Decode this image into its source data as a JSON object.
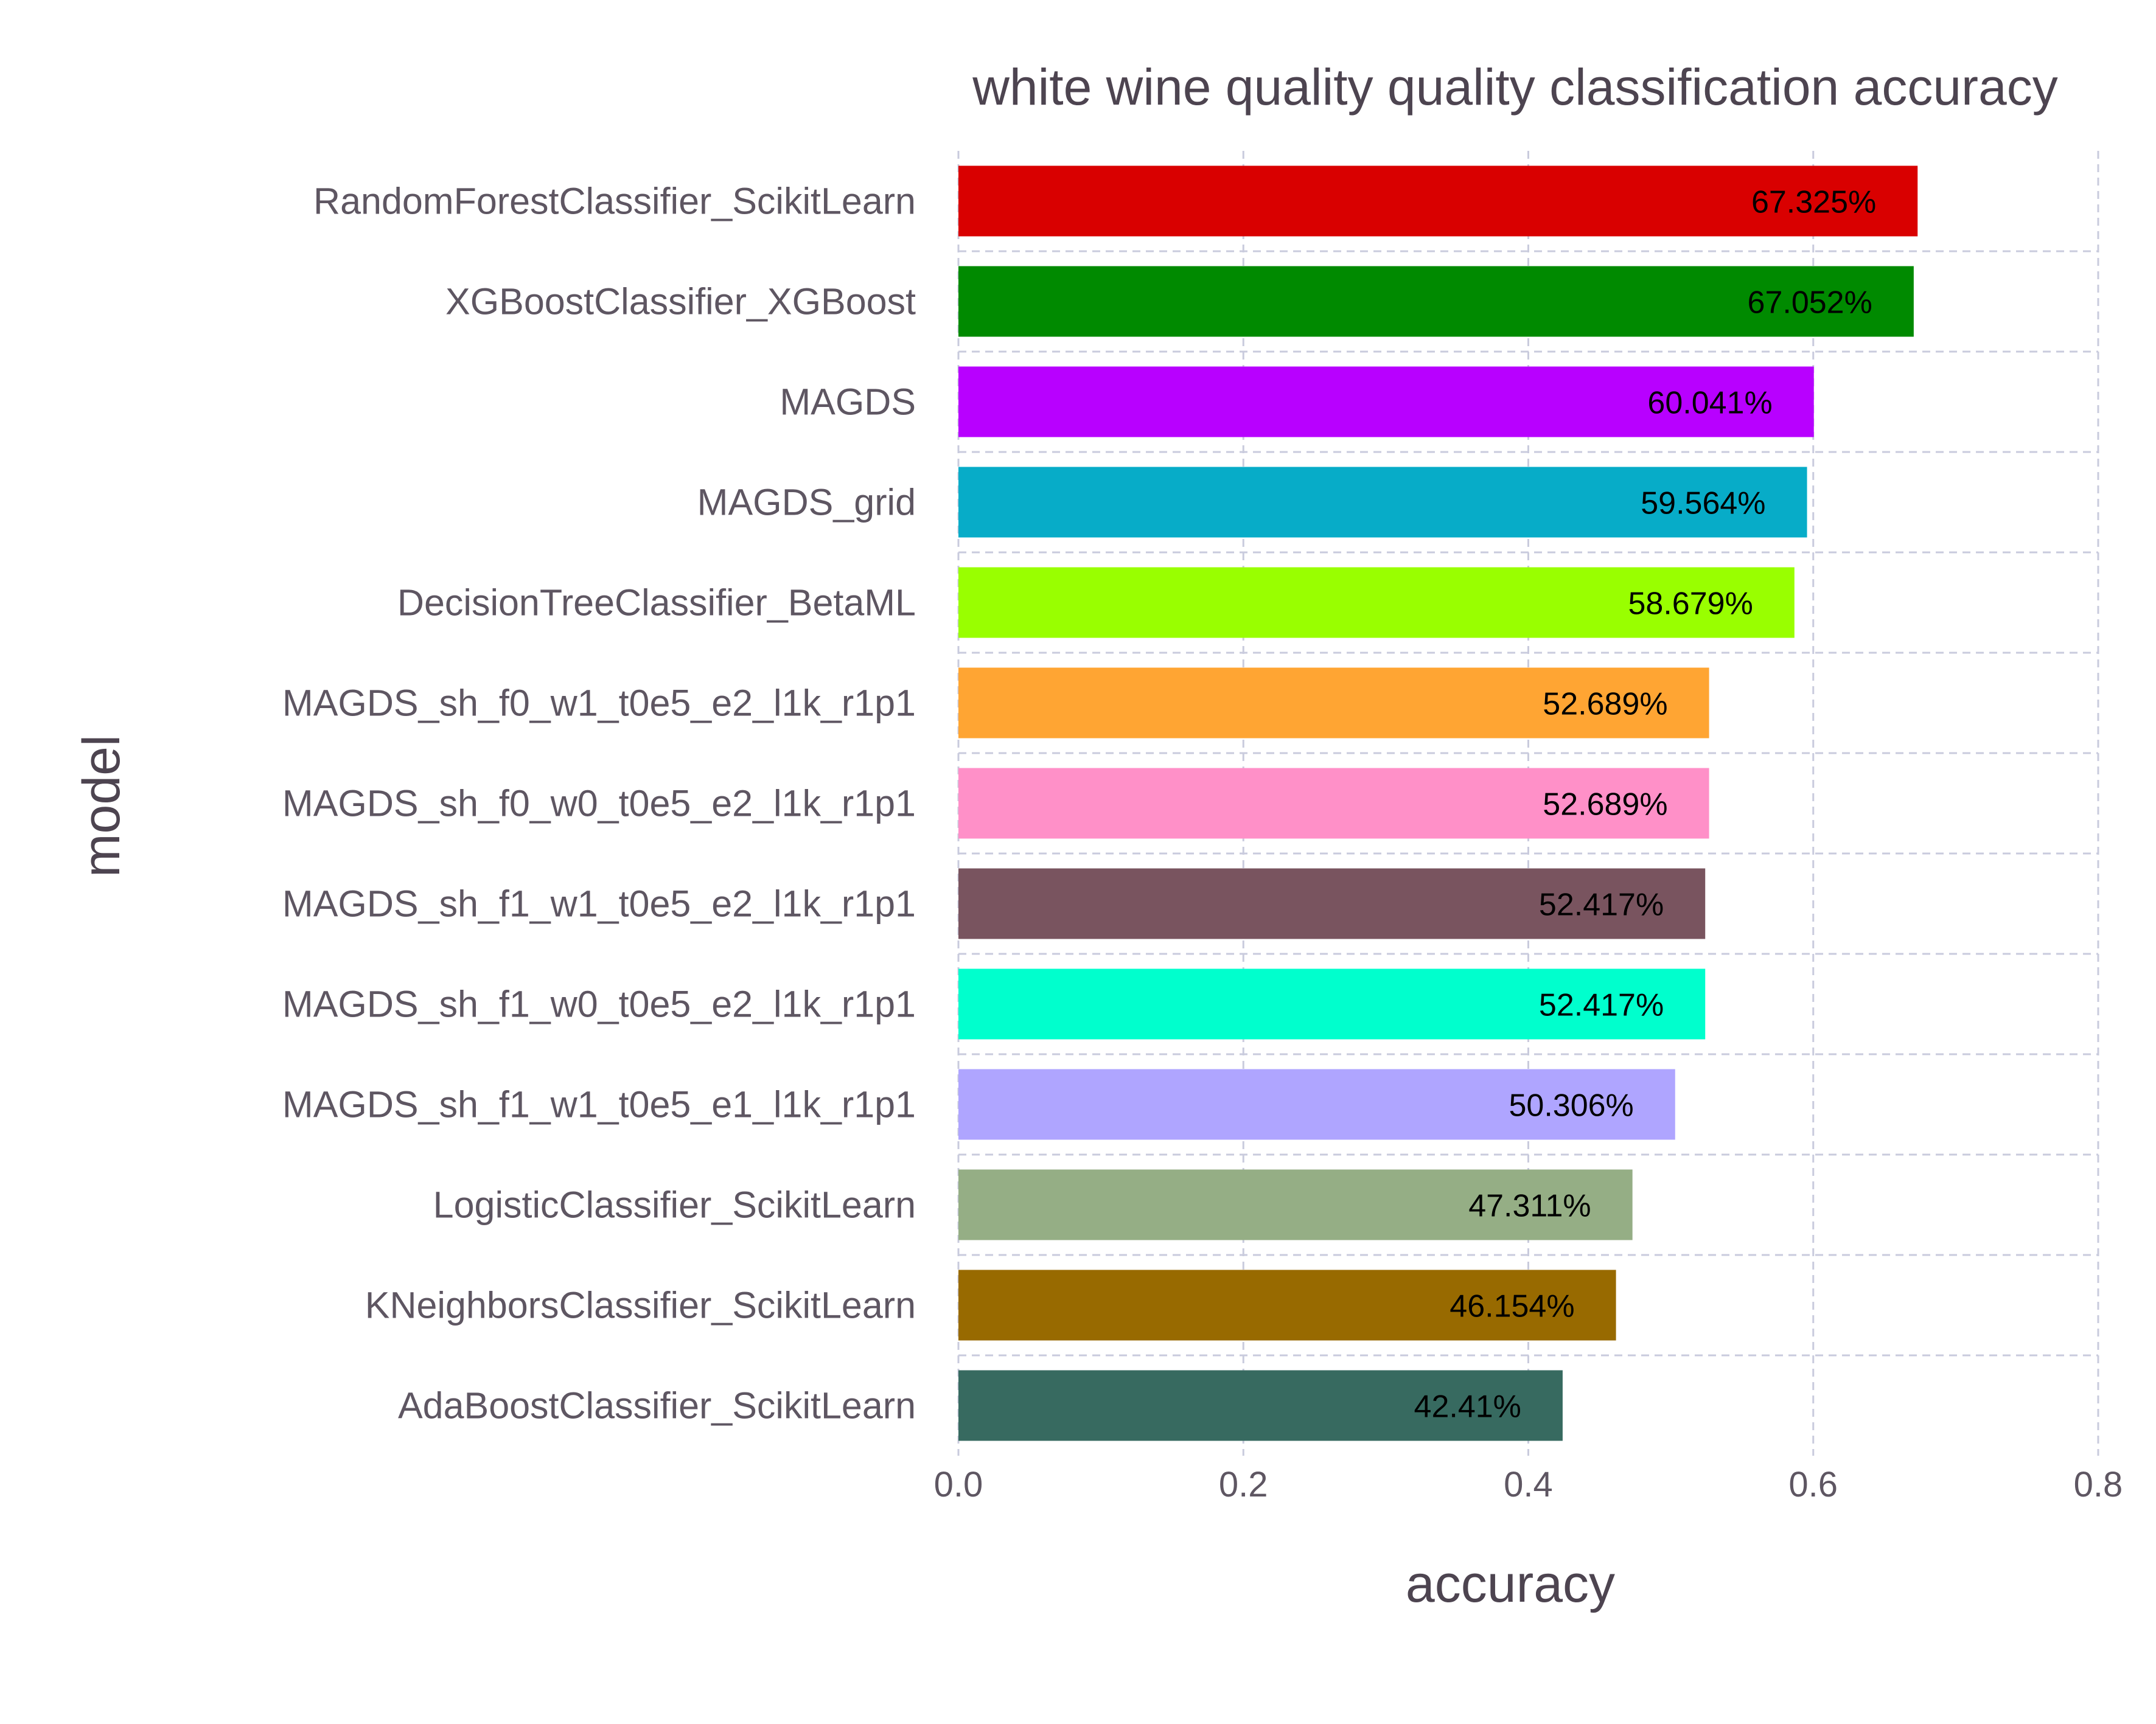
{
  "chart_data": {
    "type": "bar",
    "orientation": "horizontal",
    "title": "white wine quality quality classification accuracy",
    "xlabel": "accuracy",
    "ylabel": "model",
    "xlim": [
      0,
      0.8
    ],
    "xticks": [
      "0.0",
      "0.2",
      "0.4",
      "0.6",
      "0.8"
    ],
    "grid": true,
    "legend": "none",
    "categories": [
      "RandomForestClassifier_ScikitLearn",
      "XGBoostClassifier_XGBoost",
      "MAGDS",
      "MAGDS_grid",
      "DecisionTreeClassifier_BetaML",
      "MAGDS_sh_f0_w1_t0e5_e2_l1k_r1p1",
      "MAGDS_sh_f0_w0_t0e5_e2_l1k_r1p1",
      "MAGDS_sh_f1_w1_t0e5_e2_l1k_r1p1",
      "MAGDS_sh_f1_w0_t0e5_e2_l1k_r1p1",
      "MAGDS_sh_f1_w1_t0e5_e1_l1k_r1p1",
      "LogisticClassifier_ScikitLearn",
      "KNeighborsClassifier_ScikitLearn",
      "AdaBoostClassifier_ScikitLearn"
    ],
    "values": [
      0.67325,
      0.67052,
      0.60041,
      0.59564,
      0.58679,
      0.52689,
      0.52689,
      0.52417,
      0.52417,
      0.50306,
      0.47311,
      0.46154,
      0.4241
    ],
    "data_labels": [
      "67.325%",
      "67.052%",
      "60.041%",
      "59.564%",
      "58.679%",
      "52.689%",
      "52.689%",
      "52.417%",
      "52.417%",
      "50.306%",
      "47.311%",
      "46.154%",
      "42.41%"
    ],
    "colors": [
      "#d90000",
      "#008a00",
      "#b800ff",
      "#07acc8",
      "#99ff00",
      "#ffa533",
      "#ff90c8",
      "#79545f",
      "#00ffcd",
      "#afa5ff",
      "#95ae85",
      "#986a00",
      "#376a60"
    ]
  }
}
